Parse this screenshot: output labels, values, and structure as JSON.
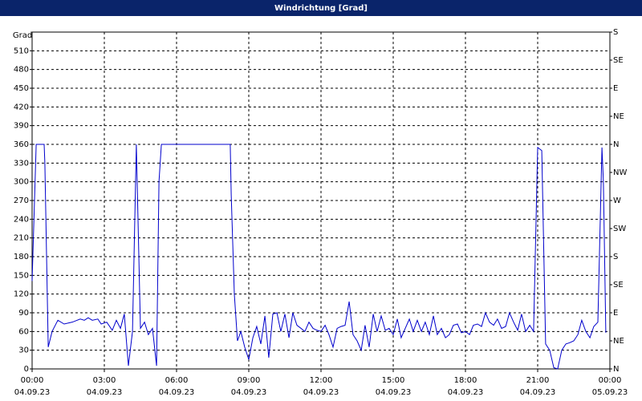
{
  "chart_data": {
    "type": "line",
    "title": "Windrichtung [Grad]",
    "y_label": "Grad",
    "color": "#0000cc",
    "grid": true,
    "xlim": [
      0,
      24
    ],
    "xticks": [
      {
        "value": 0,
        "label": "00:00"
      },
      {
        "value": 3,
        "label": "03:00"
      },
      {
        "value": 6,
        "label": "06:00"
      },
      {
        "value": 9,
        "label": "09:00"
      },
      {
        "value": 12,
        "label": "12:00"
      },
      {
        "value": 15,
        "label": "15:00"
      },
      {
        "value": 18,
        "label": "18:00"
      },
      {
        "value": 21,
        "label": "21:00"
      },
      {
        "value": 24,
        "label": "00:00"
      }
    ],
    "xtick_dates": [
      "04.09.23",
      "04.09.23",
      "04.09.23",
      "04.09.23",
      "04.09.23",
      "04.09.23",
      "04.09.23",
      "04.09.23",
      "05.09.23"
    ],
    "ylim": [
      0,
      540
    ],
    "yticks": [
      0,
      30,
      60,
      90,
      120,
      150,
      180,
      210,
      240,
      270,
      300,
      330,
      360,
      390,
      420,
      450,
      480,
      510
    ],
    "y2lim": [
      0,
      540
    ],
    "y2ticks": [
      {
        "value": 0,
        "label": "N"
      },
      {
        "value": 45,
        "label": "NE"
      },
      {
        "value": 90,
        "label": "E"
      },
      {
        "value": 135,
        "label": "SE"
      },
      {
        "value": 180,
        "label": "S"
      },
      {
        "value": 225,
        "label": "SW"
      },
      {
        "value": 270,
        "label": "W"
      },
      {
        "value": 315,
        "label": "NW"
      },
      {
        "value": 360,
        "label": "N"
      },
      {
        "value": 405,
        "label": "NE"
      },
      {
        "value": 450,
        "label": "E"
      },
      {
        "value": 495,
        "label": "SE"
      },
      {
        "value": 540,
        "label": "S"
      }
    ],
    "x": [
      0,
      0.17,
      0.5,
      0.53,
      0.67,
      0.83,
      1.07,
      1.33,
      1.67,
      2,
      2.17,
      2.33,
      2.5,
      2.73,
      2.87,
      3.1,
      3.33,
      3.5,
      3.67,
      3.83,
      4,
      4.17,
      4.33,
      4.5,
      4.67,
      4.83,
      5,
      5.17,
      5.27,
      5.37,
      8.23,
      8.27,
      8.4,
      8.53,
      8.67,
      8.83,
      9,
      9.17,
      9.33,
      9.5,
      9.67,
      9.83,
      10,
      10.17,
      10.33,
      10.5,
      10.67,
      10.83,
      11,
      11.17,
      11.33,
      11.5,
      11.67,
      11.83,
      12,
      12.17,
      12.33,
      12.5,
      12.67,
      12.83,
      13,
      13.17,
      13.33,
      13.5,
      13.67,
      13.83,
      14,
      14.17,
      14.33,
      14.5,
      14.67,
      14.83,
      15,
      15.17,
      15.33,
      15.5,
      15.67,
      15.83,
      16,
      16.17,
      16.33,
      16.5,
      16.67,
      16.83,
      17,
      17.17,
      17.33,
      17.5,
      17.67,
      17.83,
      18,
      18.17,
      18.33,
      18.5,
      18.67,
      18.83,
      19,
      19.17,
      19.33,
      19.5,
      19.67,
      19.83,
      20,
      20.17,
      20.33,
      20.5,
      20.67,
      20.83,
      21,
      21.17,
      21.33,
      21.5,
      21.67,
      21.83,
      22,
      22.17,
      22.33,
      22.5,
      22.67,
      22.83,
      23,
      23.17,
      23.33,
      23.5,
      23.67,
      23.73,
      23.83
    ],
    "values": [
      141,
      360,
      360,
      330,
      35,
      60,
      78,
      72,
      75,
      80,
      78,
      82,
      78,
      80,
      72,
      75,
      62,
      78,
      65,
      88,
      5,
      60,
      360,
      65,
      75,
      55,
      65,
      5,
      300,
      360,
      360,
      280,
      120,
      45,
      60,
      35,
      15,
      50,
      68,
      40,
      85,
      18,
      88,
      90,
      60,
      88,
      50,
      90,
      70,
      65,
      60,
      75,
      65,
      62,
      60,
      70,
      55,
      35,
      65,
      68,
      70,
      108,
      55,
      45,
      30,
      70,
      35,
      88,
      60,
      85,
      62,
      65,
      55,
      80,
      50,
      65,
      80,
      60,
      78,
      60,
      75,
      55,
      85,
      55,
      65,
      50,
      55,
      70,
      72,
      58,
      60,
      55,
      70,
      72,
      68,
      90,
      75,
      70,
      80,
      65,
      68,
      90,
      75,
      62,
      88,
      60,
      70,
      60,
      355,
      350,
      40,
      30,
      2,
      0,
      30,
      40,
      42,
      45,
      55,
      78,
      60,
      50,
      68,
      75,
      355,
      300,
      58
    ]
  }
}
